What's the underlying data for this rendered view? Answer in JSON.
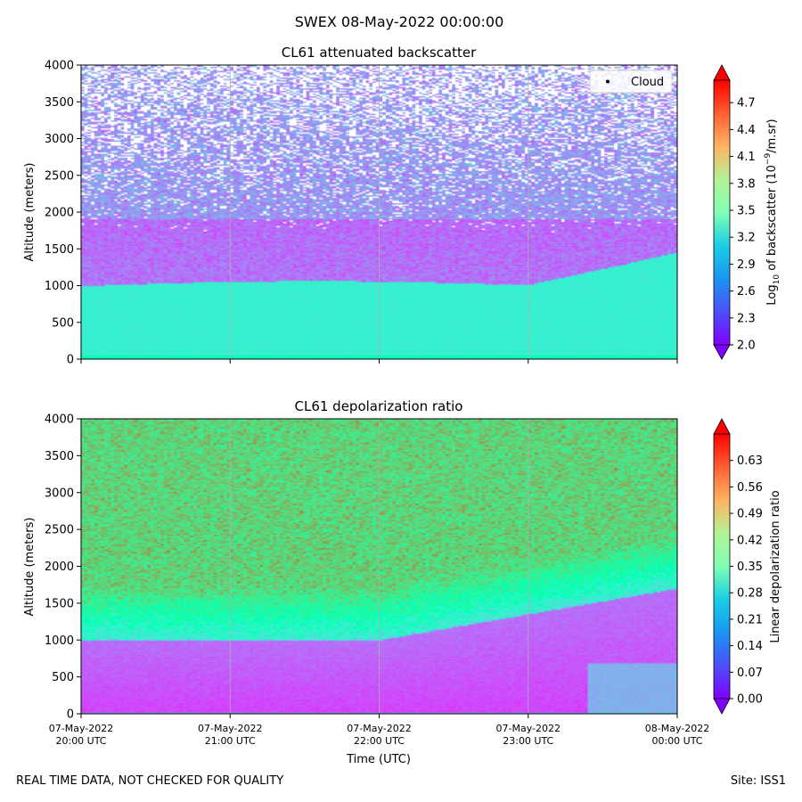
{
  "suptitle": "SWEX 08-May-2022 00:00:00",
  "footer_left": "REAL TIME DATA, NOT CHECKED FOR QUALITY",
  "footer_right": "Site: ISS1",
  "colors": {
    "rainbow_start": "#8000ff",
    "rainbow_end": "#ff0000"
  },
  "chart_data": [
    {
      "type": "heatmap",
      "title": "CL61 attenuated backscatter",
      "xlabel": "",
      "ylabel": "Altitude (meters)",
      "ylim": [
        0,
        4000
      ],
      "yticks": [
        0,
        500,
        1000,
        1500,
        2000,
        2500,
        3000,
        3500,
        4000
      ],
      "xticks": [
        "07-May-2022 20:00 UTC",
        "07-May-2022 21:00 UTC",
        "07-May-2022 22:00 UTC",
        "07-May-2022 23:00 UTC",
        "08-May-2022 00:00 UTC"
      ],
      "colorbar": {
        "label": "Log10 of backscatter (10^-9/m.sr)",
        "label_parts": {
          "a": "Log",
          "b": "10",
          "c": " of backscatter (10",
          "d": "−9",
          "e": "/m.sr)"
        },
        "range": [
          2.0,
          4.95
        ],
        "ticks": [
          "2.0",
          "2.3",
          "2.6",
          "2.9",
          "3.2",
          "3.5",
          "3.8",
          "4.1",
          "4.4",
          "4.7"
        ]
      },
      "legend": {
        "label": "Cloud",
        "position": "top-right"
      }
    },
    {
      "type": "heatmap",
      "title": "CL61 depolarization ratio",
      "xlabel": "Time (UTC)",
      "ylabel": "Altitude (meters)",
      "ylim": [
        0,
        4000
      ],
      "yticks": [
        0,
        500,
        1000,
        1500,
        2000,
        2500,
        3000,
        3500,
        4000
      ],
      "xticks": [
        "07-May-2022 20:00 UTC",
        "07-May-2022 21:00 UTC",
        "07-May-2022 22:00 UTC",
        "07-May-2022 23:00 UTC",
        "08-May-2022 00:00 UTC"
      ],
      "colorbar": {
        "label": "Linear depolarization ratio",
        "range": [
          0.0,
          0.7
        ],
        "ticks": [
          "0.00",
          "0.07",
          "0.14",
          "0.21",
          "0.28",
          "0.35",
          "0.42",
          "0.49",
          "0.56",
          "0.63"
        ]
      }
    }
  ]
}
